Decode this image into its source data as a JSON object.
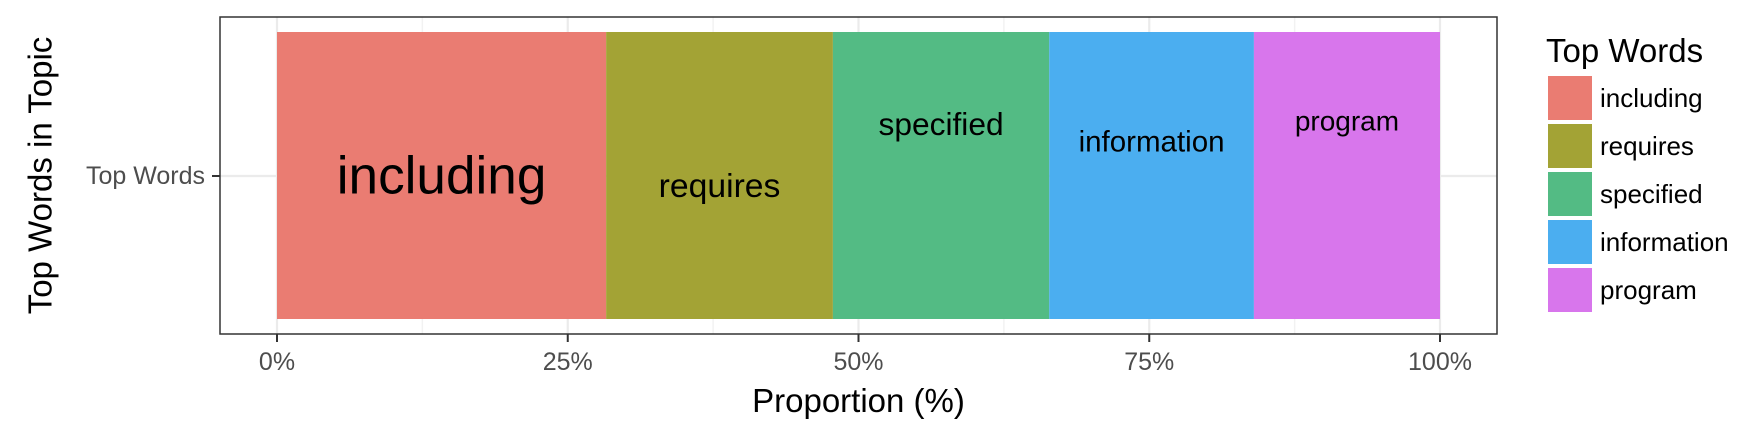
{
  "chart_data": {
    "type": "bar",
    "orientation": "horizontal",
    "stacked": true,
    "xlabel": "Proportion (%)",
    "ylabel": "Top Words in Topic",
    "categories": [
      "Top Words"
    ],
    "xlim": [
      0,
      100
    ],
    "x_ticks": [
      0,
      25,
      50,
      75,
      100
    ],
    "x_tick_labels": [
      "0%",
      "25%",
      "50%",
      "75%",
      "100%"
    ],
    "grid": true,
    "legend": {
      "title": "Top Words",
      "placement": "right"
    },
    "series": [
      {
        "name": "including",
        "values": [
          28.3
        ],
        "color": "#EA7C72"
      },
      {
        "name": "requires",
        "values": [
          19.5
        ],
        "color": "#A3A335"
      },
      {
        "name": "specified",
        "values": [
          18.6
        ],
        "color": "#53BB84"
      },
      {
        "name": "information",
        "values": [
          17.6
        ],
        "color": "#4BAEF0"
      },
      {
        "name": "program",
        "values": [
          16.0
        ],
        "color": "#D876EC"
      }
    ]
  }
}
